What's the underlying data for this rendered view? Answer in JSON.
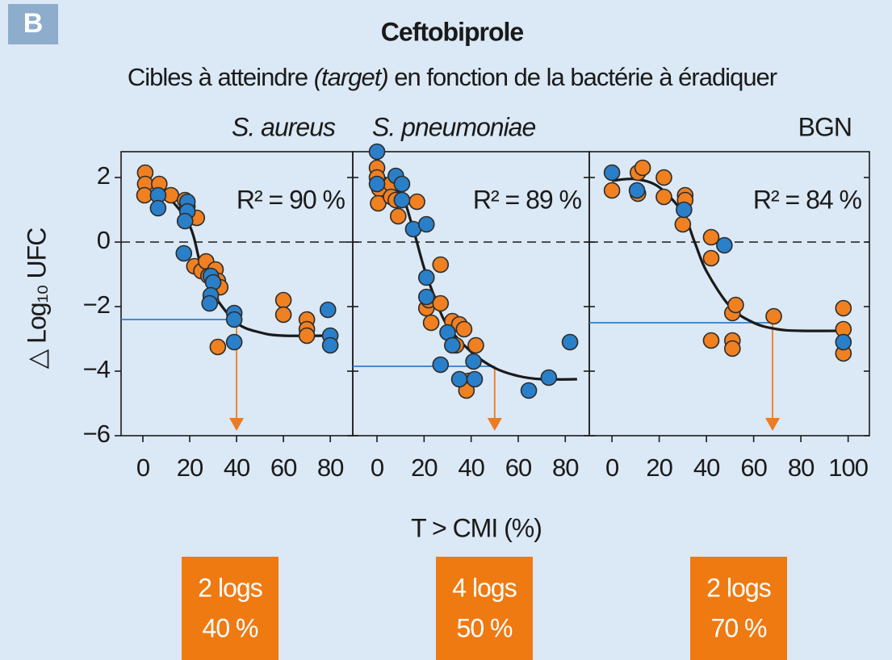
{
  "badge": "B",
  "title": "Ceftobiprole",
  "subtitle": [
    {
      "text": "Cibles à atteindre ",
      "italic": false
    },
    {
      "text": "(target)",
      "italic": true
    },
    {
      "text": " en fonction de la bactérie à éradiquer",
      "italic": false
    }
  ],
  "ylabel": "△ Log₁₀ UFC",
  "xlabel": "T > CMI (%)",
  "chart_data": [
    {
      "type": "scatter",
      "title": "S. aureus",
      "annotation": "R² = 90 %",
      "xlim": [
        -9.3,
        89.6
      ],
      "xticks": [
        0,
        20,
        40,
        60,
        80
      ],
      "ylim": [
        -6,
        2.8
      ],
      "yticks": [
        {
          "value": -6,
          "label": "−6"
        },
        {
          "value": -4,
          "label": "−4"
        },
        {
          "value": -2,
          "label": "−2"
        },
        0,
        2
      ],
      "hline": 0,
      "target_x": 40,
      "target_y": -2.4,
      "target_color": "#2f7fc8",
      "arrow_color": "#ee7b1f",
      "result": [
        "2 logs",
        "40 %"
      ],
      "series": [
        {
          "color": "#f08020",
          "x": [
            1,
            1,
            0.7,
            7,
            12,
            18,
            19,
            23,
            22,
            25,
            27,
            28,
            31,
            32,
            33,
            29,
            32,
            60,
            60,
            70,
            70,
            70
          ],
          "values": [
            2.15,
            1.8,
            1.45,
            1.8,
            1.45,
            1.3,
            1.1,
            0.75,
            -0.75,
            -0.9,
            -0.6,
            -1.05,
            -0.85,
            -1.2,
            -1.4,
            -1.8,
            -3.25,
            -1.8,
            -2.25,
            -2.4,
            -2.7,
            -2.9
          ]
        },
        {
          "color": "#2a7fc9",
          "x": [
            6.5,
            6.5,
            19,
            19,
            18,
            17.5,
            29,
            30,
            29,
            28.5,
            39,
            39,
            39,
            79,
            80,
            80
          ],
          "values": [
            1.45,
            1.05,
            1.25,
            0.95,
            0.65,
            -0.35,
            -1.05,
            -1.25,
            -1.65,
            -1.9,
            -2.2,
            -2.4,
            -3.1,
            -2.1,
            -2.9,
            -3.2
          ]
        },
        {
          "color": "#1a1a1a",
          "style": "line",
          "x": [
            0,
            10,
            20,
            25,
            30,
            40,
            50,
            60,
            80
          ],
          "values": [
            1.85,
            1.45,
            0.5,
            -0.8,
            -1.6,
            -2.5,
            -2.8,
            -2.9,
            -2.9
          ]
        }
      ]
    },
    {
      "type": "scatter",
      "title": "S. pneumoniae",
      "annotation": "R² = 89 %",
      "xlim": [
        -10.3,
        90.2
      ],
      "xticks": [
        0,
        20,
        40,
        60,
        80
      ],
      "ylim": [
        -6,
        2.8
      ],
      "yticks": [
        -6,
        -4,
        -2,
        0,
        2
      ],
      "hline": 0,
      "target_x": 50,
      "target_y": -3.85,
      "target_color": "#2f7fc8",
      "arrow_color": "#ee7b1f",
      "result": [
        "4 logs",
        "50 %"
      ],
      "series": [
        {
          "color": "#f08020",
          "x": [
            0,
            0,
            1,
            0.5,
            6,
            6,
            9,
            8,
            17,
            21,
            22,
            27,
            27,
            23,
            32,
            35,
            37,
            33.6,
            42,
            39,
            38
          ],
          "values": [
            2.3,
            2.0,
            1.65,
            1.2,
            1.8,
            1.4,
            0.8,
            1.3,
            1.25,
            -2.05,
            -1.8,
            -0.7,
            -1.9,
            -2.5,
            -2.45,
            -2.55,
            -2.7,
            -3.2,
            -3.2,
            -4.3,
            -4.6
          ]
        },
        {
          "color": "#2a7fc9",
          "x": [
            0,
            0,
            8,
            10.6,
            10.6,
            15.4,
            21,
            21,
            21,
            27,
            30,
            32,
            35,
            41.5,
            41,
            64.5,
            73,
            82
          ],
          "values": [
            2.8,
            1.8,
            2.05,
            1.8,
            1.3,
            0.4,
            0.55,
            -1.1,
            -1.7,
            -3.8,
            -2.8,
            -3.2,
            -4.25,
            -4.25,
            -3.7,
            -4.6,
            -4.2,
            -3.1
          ]
        },
        {
          "color": "#1a1a1a",
          "style": "line",
          "x": [
            0,
            10,
            15,
            20,
            25,
            30,
            40,
            50,
            60,
            70,
            85
          ],
          "values": [
            2.2,
            1.5,
            0.5,
            -0.8,
            -1.8,
            -2.6,
            -3.4,
            -3.9,
            -4.15,
            -4.25,
            -4.25
          ]
        }
      ]
    },
    {
      "type": "scatter",
      "title": "BGN",
      "annotation": "R² = 84 %",
      "xlim": [
        -9.6,
        109
      ],
      "xticks": [
        0,
        20,
        40,
        60,
        80,
        100
      ],
      "ylim": [
        -6,
        2.8
      ],
      "yticks": [
        -6,
        -4,
        -2,
        0,
        2
      ],
      "hline": 0,
      "target_x": 68,
      "target_y": -2.5,
      "target_color": "#2f7fc8",
      "arrow_color": "#ee7b1f",
      "result": [
        "2 logs",
        "70 %"
      ],
      "series": [
        {
          "color": "#f08020",
          "x": [
            0,
            11,
            13,
            11,
            22,
            22,
            31,
            31,
            30,
            42,
            42,
            42,
            51,
            51,
            51,
            52.4,
            68.5,
            98,
            98,
            98
          ],
          "values": [
            1.6,
            2.15,
            2.3,
            1.5,
            2.0,
            1.4,
            1.45,
            1.3,
            0.55,
            0.15,
            -0.5,
            -3.05,
            -3.05,
            -3.3,
            -2.2,
            -1.95,
            -2.3,
            -2.05,
            -2.7,
            -3.45
          ]
        },
        {
          "color": "#2a7fc9",
          "x": [
            0,
            10.6,
            30.5,
            47.6,
            98
          ],
          "values": [
            2.15,
            1.6,
            1.0,
            -0.1,
            -3.1
          ]
        },
        {
          "color": "#1a1a1a",
          "style": "line",
          "x": [
            0,
            10,
            20,
            30,
            35,
            40,
            50,
            60,
            70,
            80,
            100
          ],
          "values": [
            1.9,
            1.95,
            1.7,
            0.9,
            0.0,
            -0.9,
            -2.0,
            -2.5,
            -2.7,
            -2.75,
            -2.75
          ]
        }
      ]
    }
  ]
}
